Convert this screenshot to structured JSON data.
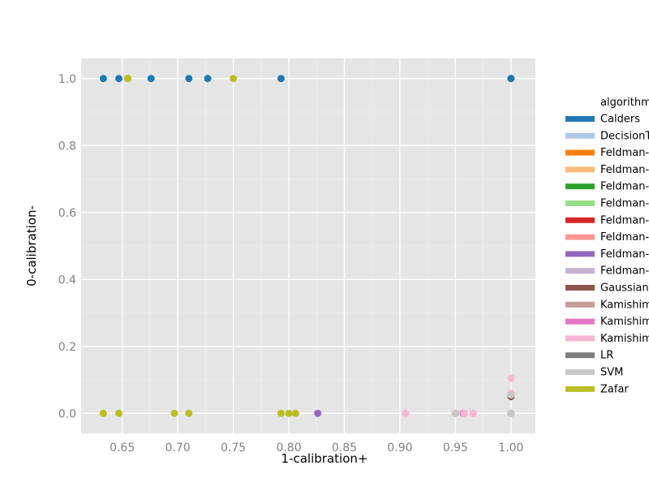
{
  "chart_data": {
    "type": "scatter",
    "xlabel": "1-calibration+",
    "ylabel": "0-calibration-",
    "xlim": [
      0.613,
      1.022
    ],
    "ylim": [
      -0.06,
      1.06
    ],
    "x_ticks": [
      0.65,
      0.7,
      0.75,
      0.8,
      0.85,
      0.9,
      0.95,
      1.0
    ],
    "x_tick_labels": [
      "0.65",
      "0.70",
      "0.75",
      "0.80",
      "0.85",
      "0.90",
      "0.95",
      "1.00"
    ],
    "y_ticks": [
      0.0,
      0.2,
      0.4,
      0.6,
      0.8,
      1.0
    ],
    "y_tick_labels": [
      "0.0",
      "0.2",
      "0.4",
      "0.6",
      "0.8",
      "1.0"
    ],
    "grid": true,
    "legend_position": "right",
    "legend_title": "algorithm",
    "series": [
      {
        "name": "Calders",
        "color": "#1f77b4",
        "points": [
          [
            0.633,
            1.0
          ],
          [
            0.647,
            1.0
          ],
          [
            0.655,
            1.0
          ],
          [
            0.676,
            1.0
          ],
          [
            0.71,
            1.0
          ],
          [
            0.727,
            1.0
          ],
          [
            0.793,
            1.0
          ],
          [
            1.0,
            1.0
          ],
          [
            1.0,
            1.0
          ]
        ]
      },
      {
        "name": "DecisionTree",
        "color": "#aec7e8",
        "points": []
      },
      {
        "name": "Feldman-DecisionTree",
        "color": "#ff7f0e",
        "points": [
          [
            1.0,
            0.055
          ]
        ]
      },
      {
        "name": "Feldman-GaussianNB",
        "color": "#ffbb78",
        "points": []
      },
      {
        "name": "Feldman-LR",
        "color": "#2ca02c",
        "points": []
      },
      {
        "name": "Feldman-SVM",
        "color": "#98df8a",
        "points": []
      },
      {
        "name": "Feldman-Calders",
        "color": "#d62728",
        "points": []
      },
      {
        "name": "Feldman-Kamishima",
        "color": "#ff9896",
        "points": [
          [
            1.0,
            0.06
          ]
        ]
      },
      {
        "name": "Feldman-Zafar",
        "color": "#9467bd",
        "points": [
          [
            0.826,
            0.0
          ]
        ]
      },
      {
        "name": "Feldman-Other",
        "color": "#c5b0d5",
        "points": []
      },
      {
        "name": "GaussianNB",
        "color": "#8c564b",
        "points": [
          [
            1.0,
            0.05
          ]
        ]
      },
      {
        "name": "Kamishima",
        "color": "#c49c94",
        "points": []
      },
      {
        "name": "Kamishima-accuracy",
        "color": "#e377c2",
        "points": [
          [
            0.957,
            0.0
          ]
        ]
      },
      {
        "name": "Kamishima-DIavgall",
        "color": "#f7b6d2",
        "points": [
          [
            0.905,
            0.0
          ],
          [
            0.905,
            0.0
          ],
          [
            0.95,
            0.0
          ],
          [
            0.958,
            0.0
          ],
          [
            0.966,
            0.0
          ],
          [
            1.0,
            0.105
          ],
          [
            1.0,
            0.06
          ]
        ]
      },
      {
        "name": "LR",
        "color": "#7f7f7f",
        "points": [
          [
            0.95,
            0.0
          ],
          [
            1.0,
            0.0
          ]
        ]
      },
      {
        "name": "SVM",
        "color": "#c7c7c7",
        "points": [
          [
            0.95,
            0.0
          ],
          [
            1.0,
            0.0
          ],
          [
            1.0,
            0.055
          ]
        ]
      },
      {
        "name": "Zafar",
        "color": "#bcbd22",
        "points": [
          [
            0.633,
            0.0
          ],
          [
            0.647,
            0.0
          ],
          [
            0.697,
            0.0
          ],
          [
            0.71,
            0.0
          ],
          [
            0.793,
            0.0
          ],
          [
            0.8,
            0.0
          ],
          [
            0.806,
            0.0
          ],
          [
            0.655,
            1.0
          ],
          [
            0.655,
            1.0
          ],
          [
            0.75,
            1.0
          ]
        ]
      }
    ]
  }
}
